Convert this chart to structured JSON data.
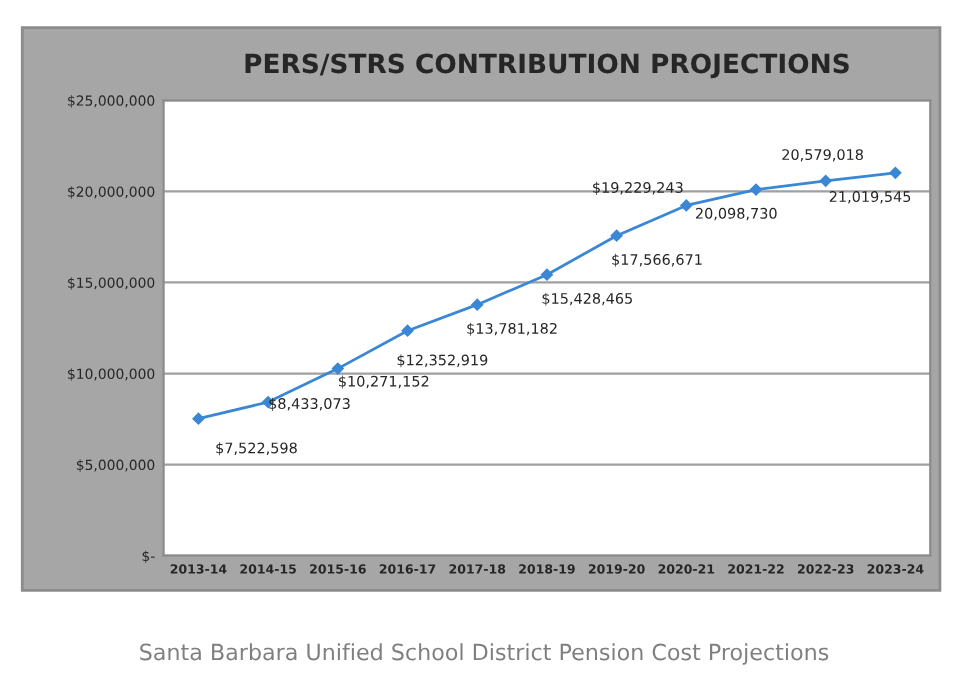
{
  "chart_data": {
    "type": "line",
    "title": "PERS/STRS CONTRIBUTION PROJECTIONS",
    "categories": [
      "2013-14",
      "2014-15",
      "2015-16",
      "2016-17",
      "2017-18",
      "2018-19",
      "2019-20",
      "2020-21",
      "2021-22",
      "2022-23",
      "2023-24"
    ],
    "series": [
      {
        "color": "#3a87d6",
        "values": [
          7522598,
          8433073,
          10271152,
          12352919,
          13781182,
          15428465,
          17566671,
          19229243,
          20098730,
          20579018,
          21019545
        ],
        "value_labels": [
          "$7,522,598",
          "$8,433,073",
          "$10,271,152",
          "$12,352,919",
          "$13,781,182",
          "$15,428,465",
          "$17,566,671",
          "$19,229,243",
          "20,098,730",
          "20,579,018",
          "21,019,545"
        ]
      }
    ],
    "ylim": [
      0,
      25000000
    ],
    "yticks": [
      {
        "value": 0,
        "label": "$-"
      },
      {
        "value": 5000000,
        "label": "$5,000,000"
      },
      {
        "value": 10000000,
        "label": "$10,000,000"
      },
      {
        "value": 15000000,
        "label": "$15,000,000"
      },
      {
        "value": 20000000,
        "label": "$20,000,000"
      },
      {
        "value": 25000000,
        "label": "$25,000,000"
      }
    ],
    "grid": "y",
    "marker": "diamond",
    "line_style": "solid",
    "legend": false,
    "annotations": [
      "Santa Barbara Unified School District Pension Cost Projections"
    ]
  }
}
